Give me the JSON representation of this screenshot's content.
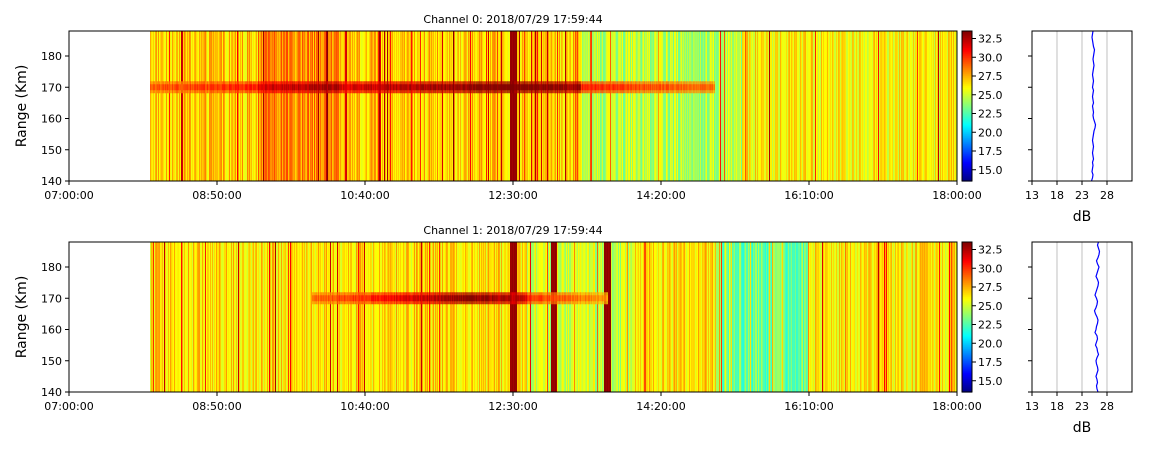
{
  "chart_data": [
    {
      "type": "heatmap",
      "title": "Channel 0: 2018/07/29 17:59:44",
      "ylabel": "Range (Km)",
      "x_ticks": [
        "07:00:00",
        "08:50:00",
        "10:40:00",
        "12:30:00",
        "14:20:00",
        "16:10:00",
        "18:00:00"
      ],
      "xlim": [
        "07:00:00",
        "18:00:00"
      ],
      "data_start": "08:00:00",
      "y_ticks": [
        140,
        150,
        160,
        170,
        180
      ],
      "ylim": [
        140,
        188
      ],
      "colorbar": {
        "colormap": "jet",
        "range": [
          13.5,
          33.5
        ],
        "ticks": [
          "15.0",
          "17.5",
          "20.0",
          "22.5",
          "25.0",
          "27.5",
          "30.0",
          "32.5"
        ]
      },
      "echo_band": {
        "range_km": 170,
        "start": "08:00:00",
        "end": "15:00:00",
        "peak_time": "12:30:00"
      },
      "strong_columns": [
        "12:30:00"
      ],
      "profile": {
        "xlabel": "dB",
        "x_ticks": [
          13,
          18,
          23,
          28
        ],
        "xlim": [
          13,
          33
        ],
        "grid": true,
        "values_db": [
          24.9,
          25.1,
          25.2,
          25.0,
          25.1,
          25.2,
          25.1,
          25.3,
          25.2,
          25.1,
          25.2,
          25.3,
          25.2,
          25.1,
          25.2,
          25.3,
          25.4,
          25.6,
          25.7,
          25.5,
          25.3,
          25.2,
          25.3,
          25.2,
          25.1,
          25.3,
          25.2,
          25.1,
          25.2,
          25.3,
          25.1,
          25.2,
          25.3,
          25.2,
          25.1,
          25.2,
          25.3,
          25.4,
          25.3,
          25.2,
          25.3,
          25.4,
          25.5,
          25.3,
          25.2,
          25.1,
          25.0,
          25.1,
          25.2
        ]
      }
    },
    {
      "type": "heatmap",
      "title": "Channel 1: 2018/07/29 17:59:44",
      "ylabel": "Range (Km)",
      "x_ticks": [
        "07:00:00",
        "08:50:00",
        "10:40:00",
        "12:30:00",
        "14:20:00",
        "16:10:00",
        "18:00:00"
      ],
      "xlim": [
        "07:00:00",
        "18:00:00"
      ],
      "data_start": "08:00:00",
      "y_ticks": [
        140,
        150,
        160,
        170,
        180
      ],
      "ylim": [
        140,
        188
      ],
      "colorbar": {
        "colormap": "jet",
        "range": [
          13.5,
          33.5
        ],
        "ticks": [
          "15.0",
          "17.5",
          "20.0",
          "22.5",
          "25.0",
          "27.5",
          "30.0",
          "32.5"
        ]
      },
      "echo_band": {
        "range_km": 170,
        "start": "10:00:00",
        "end": "13:40:00",
        "peak_time": "12:00:00"
      },
      "strong_columns": [
        "12:30:00",
        "13:00:00",
        "13:40:00"
      ],
      "profile": {
        "xlabel": "dB",
        "x_ticks": [
          13,
          18,
          23,
          28
        ],
        "xlim": [
          13,
          33
        ],
        "grid": true,
        "values_db": [
          26.2,
          26.0,
          25.9,
          26.1,
          26.0,
          25.8,
          26.0,
          26.2,
          26.1,
          25.9,
          25.8,
          26.0,
          26.3,
          26.1,
          26.0,
          25.7,
          25.9,
          26.1,
          26.0,
          25.6,
          25.8,
          25.9,
          26.1,
          26.2,
          26.0,
          25.7,
          25.5,
          25.8,
          26.0,
          26.1,
          25.9,
          25.6,
          25.8,
          26.0,
          26.2,
          26.3,
          26.1,
          25.8,
          26.0,
          26.2,
          26.4,
          26.1,
          25.9,
          26.2,
          26.4,
          26.5,
          26.3,
          26.1,
          26.3
        ]
      }
    }
  ]
}
